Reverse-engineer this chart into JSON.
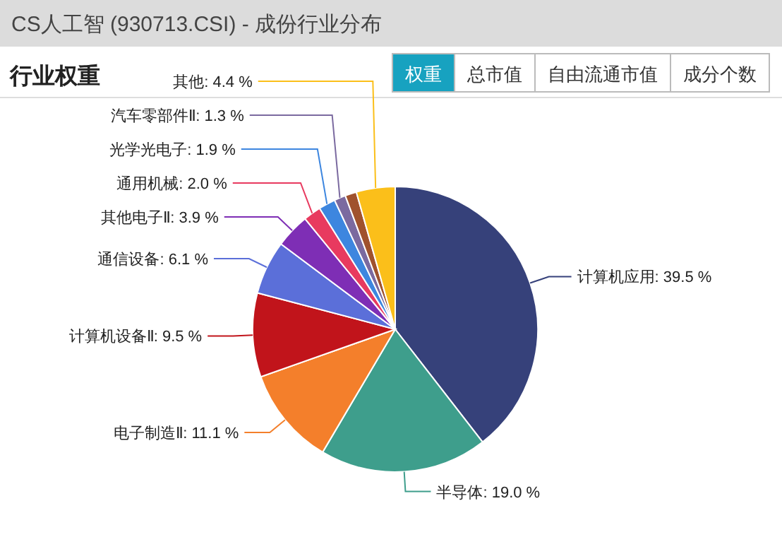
{
  "chart_data": {
    "type": "pie",
    "title": "CS人工智 (930713.CSI) - 成份行业分布",
    "subtitle": "行业权重",
    "annotations": [
      "权重",
      "总市值",
      "自由流通市值",
      "成分个数"
    ],
    "categories": [
      "计算机应用",
      "半导体",
      "电子制造Ⅱ",
      "计算机设备Ⅱ",
      "通信设备",
      "其他电子Ⅱ",
      "通用机械",
      "光学光电子",
      "汽车零部件Ⅱ",
      null,
      "其他"
    ],
    "values": [
      39.5,
      19.0,
      11.1,
      9.5,
      6.1,
      3.9,
      2.0,
      1.9,
      1.3,
      1.3,
      4.4
    ],
    "value_labels": [
      "39.5 %",
      "19.0 %",
      "11.1 %",
      "9.5 %",
      "6.1 %",
      "3.9 %",
      "2.0 %",
      "1.9 %",
      "1.3 %",
      null,
      "4.4 %"
    ],
    "colors": [
      "#36417a",
      "#3e9e8c",
      "#f47f2b",
      "#c1141b",
      "#5b6fd9",
      "#7e2eb5",
      "#e83a5f",
      "#3d86df",
      "#7b6aa0",
      "#a0522d",
      "#fbbf1a"
    ]
  }
}
